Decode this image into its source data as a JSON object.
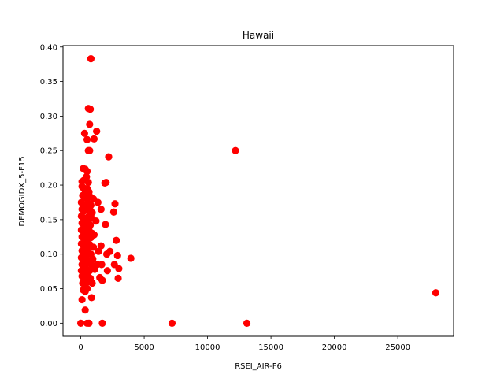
{
  "chart_data": {
    "type": "scatter",
    "title": "Hawaii",
    "xlabel": "RSEI_AIR-F6",
    "ylabel": "DEMOGIDX_5-F15",
    "xlim": [
      -1400,
      29400
    ],
    "ylim": [
      -0.019,
      0.402
    ],
    "xticks": [
      0,
      5000,
      10000,
      15000,
      20000,
      25000
    ],
    "xtick_labels": [
      "0",
      "5000",
      "10000",
      "15000",
      "20000",
      "25000"
    ],
    "yticks": [
      0.0,
      0.05,
      0.1,
      0.15,
      0.2,
      0.25,
      0.3,
      0.35,
      0.4
    ],
    "ytick_labels": [
      "0.00",
      "0.05",
      "0.10",
      "0.15",
      "0.20",
      "0.25",
      "0.30",
      "0.35",
      "0.40"
    ],
    "grid": false,
    "legend": false,
    "marker_color": "#ff0000",
    "series": [
      {
        "points": [
          [
            800,
            0.383
          ],
          [
            600,
            0.311
          ],
          [
            750,
            0.31
          ],
          [
            700,
            0.288
          ],
          [
            300,
            0.275
          ],
          [
            1250,
            0.278
          ],
          [
            500,
            0.266
          ],
          [
            1050,
            0.267
          ],
          [
            600,
            0.25
          ],
          [
            700,
            0.25
          ],
          [
            12200,
            0.25
          ],
          [
            2200,
            0.241
          ],
          [
            200,
            0.224
          ],
          [
            350,
            0.223
          ],
          [
            500,
            0.22
          ],
          [
            450,
            0.212
          ],
          [
            100,
            0.205
          ],
          [
            250,
            0.207
          ],
          [
            600,
            0.204
          ],
          [
            1900,
            0.203
          ],
          [
            2000,
            0.204
          ],
          [
            100,
            0.198
          ],
          [
            200,
            0.196
          ],
          [
            350,
            0.192
          ],
          [
            500,
            0.195
          ],
          [
            650,
            0.19
          ],
          [
            150,
            0.185
          ],
          [
            300,
            0.182
          ],
          [
            450,
            0.184
          ],
          [
            750,
            0.183
          ],
          [
            1000,
            0.18
          ],
          [
            50,
            0.175
          ],
          [
            250,
            0.172
          ],
          [
            400,
            0.17
          ],
          [
            550,
            0.174
          ],
          [
            800,
            0.171
          ],
          [
            1350,
            0.175
          ],
          [
            2700,
            0.173
          ],
          [
            100,
            0.165
          ],
          [
            300,
            0.163
          ],
          [
            500,
            0.165
          ],
          [
            700,
            0.166
          ],
          [
            900,
            0.16
          ],
          [
            1600,
            0.165
          ],
          [
            2600,
            0.161
          ],
          [
            50,
            0.155
          ],
          [
            200,
            0.153
          ],
          [
            400,
            0.15
          ],
          [
            600,
            0.154
          ],
          [
            850,
            0.152
          ],
          [
            100,
            0.145
          ],
          [
            300,
            0.143
          ],
          [
            500,
            0.145
          ],
          [
            750,
            0.142
          ],
          [
            1200,
            0.148
          ],
          [
            1950,
            0.143
          ],
          [
            50,
            0.135
          ],
          [
            250,
            0.133
          ],
          [
            450,
            0.138
          ],
          [
            650,
            0.135
          ],
          [
            900,
            0.13
          ],
          [
            100,
            0.125
          ],
          [
            300,
            0.122
          ],
          [
            550,
            0.126
          ],
          [
            800,
            0.124
          ],
          [
            1050,
            0.128
          ],
          [
            50,
            0.115
          ],
          [
            250,
            0.112
          ],
          [
            450,
            0.118
          ],
          [
            700,
            0.114
          ],
          [
            1000,
            0.11
          ],
          [
            1600,
            0.112
          ],
          [
            2800,
            0.12
          ],
          [
            100,
            0.105
          ],
          [
            300,
            0.102
          ],
          [
            500,
            0.106
          ],
          [
            800,
            0.1
          ],
          [
            1400,
            0.104
          ],
          [
            2300,
            0.104
          ],
          [
            2050,
            0.1
          ],
          [
            2900,
            0.098
          ],
          [
            3950,
            0.094
          ],
          [
            50,
            0.095
          ],
          [
            200,
            0.092
          ],
          [
            400,
            0.096
          ],
          [
            650,
            0.09
          ],
          [
            950,
            0.093
          ],
          [
            100,
            0.085
          ],
          [
            300,
            0.083
          ],
          [
            550,
            0.087
          ],
          [
            850,
            0.085
          ],
          [
            1300,
            0.085
          ],
          [
            1650,
            0.085
          ],
          [
            2650,
            0.085
          ],
          [
            50,
            0.076
          ],
          [
            250,
            0.074
          ],
          [
            450,
            0.078
          ],
          [
            700,
            0.076
          ],
          [
            1100,
            0.078
          ],
          [
            2100,
            0.076
          ],
          [
            3000,
            0.079
          ],
          [
            100,
            0.068
          ],
          [
            300,
            0.066
          ],
          [
            500,
            0.07
          ],
          [
            750,
            0.065
          ],
          [
            1500,
            0.066
          ],
          [
            1700,
            0.062
          ],
          [
            2950,
            0.065
          ],
          [
            150,
            0.058
          ],
          [
            350,
            0.056
          ],
          [
            600,
            0.06
          ],
          [
            900,
            0.058
          ],
          [
            200,
            0.048
          ],
          [
            350,
            0.046
          ],
          [
            500,
            0.05
          ],
          [
            100,
            0.034
          ],
          [
            850,
            0.037
          ],
          [
            350,
            0.019
          ],
          [
            28000,
            0.044
          ],
          [
            0,
            0.0
          ],
          [
            500,
            0.0
          ],
          [
            650,
            0.0
          ],
          [
            1700,
            0.0
          ],
          [
            7200,
            0.0
          ],
          [
            13100,
            0.0
          ]
        ]
      }
    ]
  }
}
